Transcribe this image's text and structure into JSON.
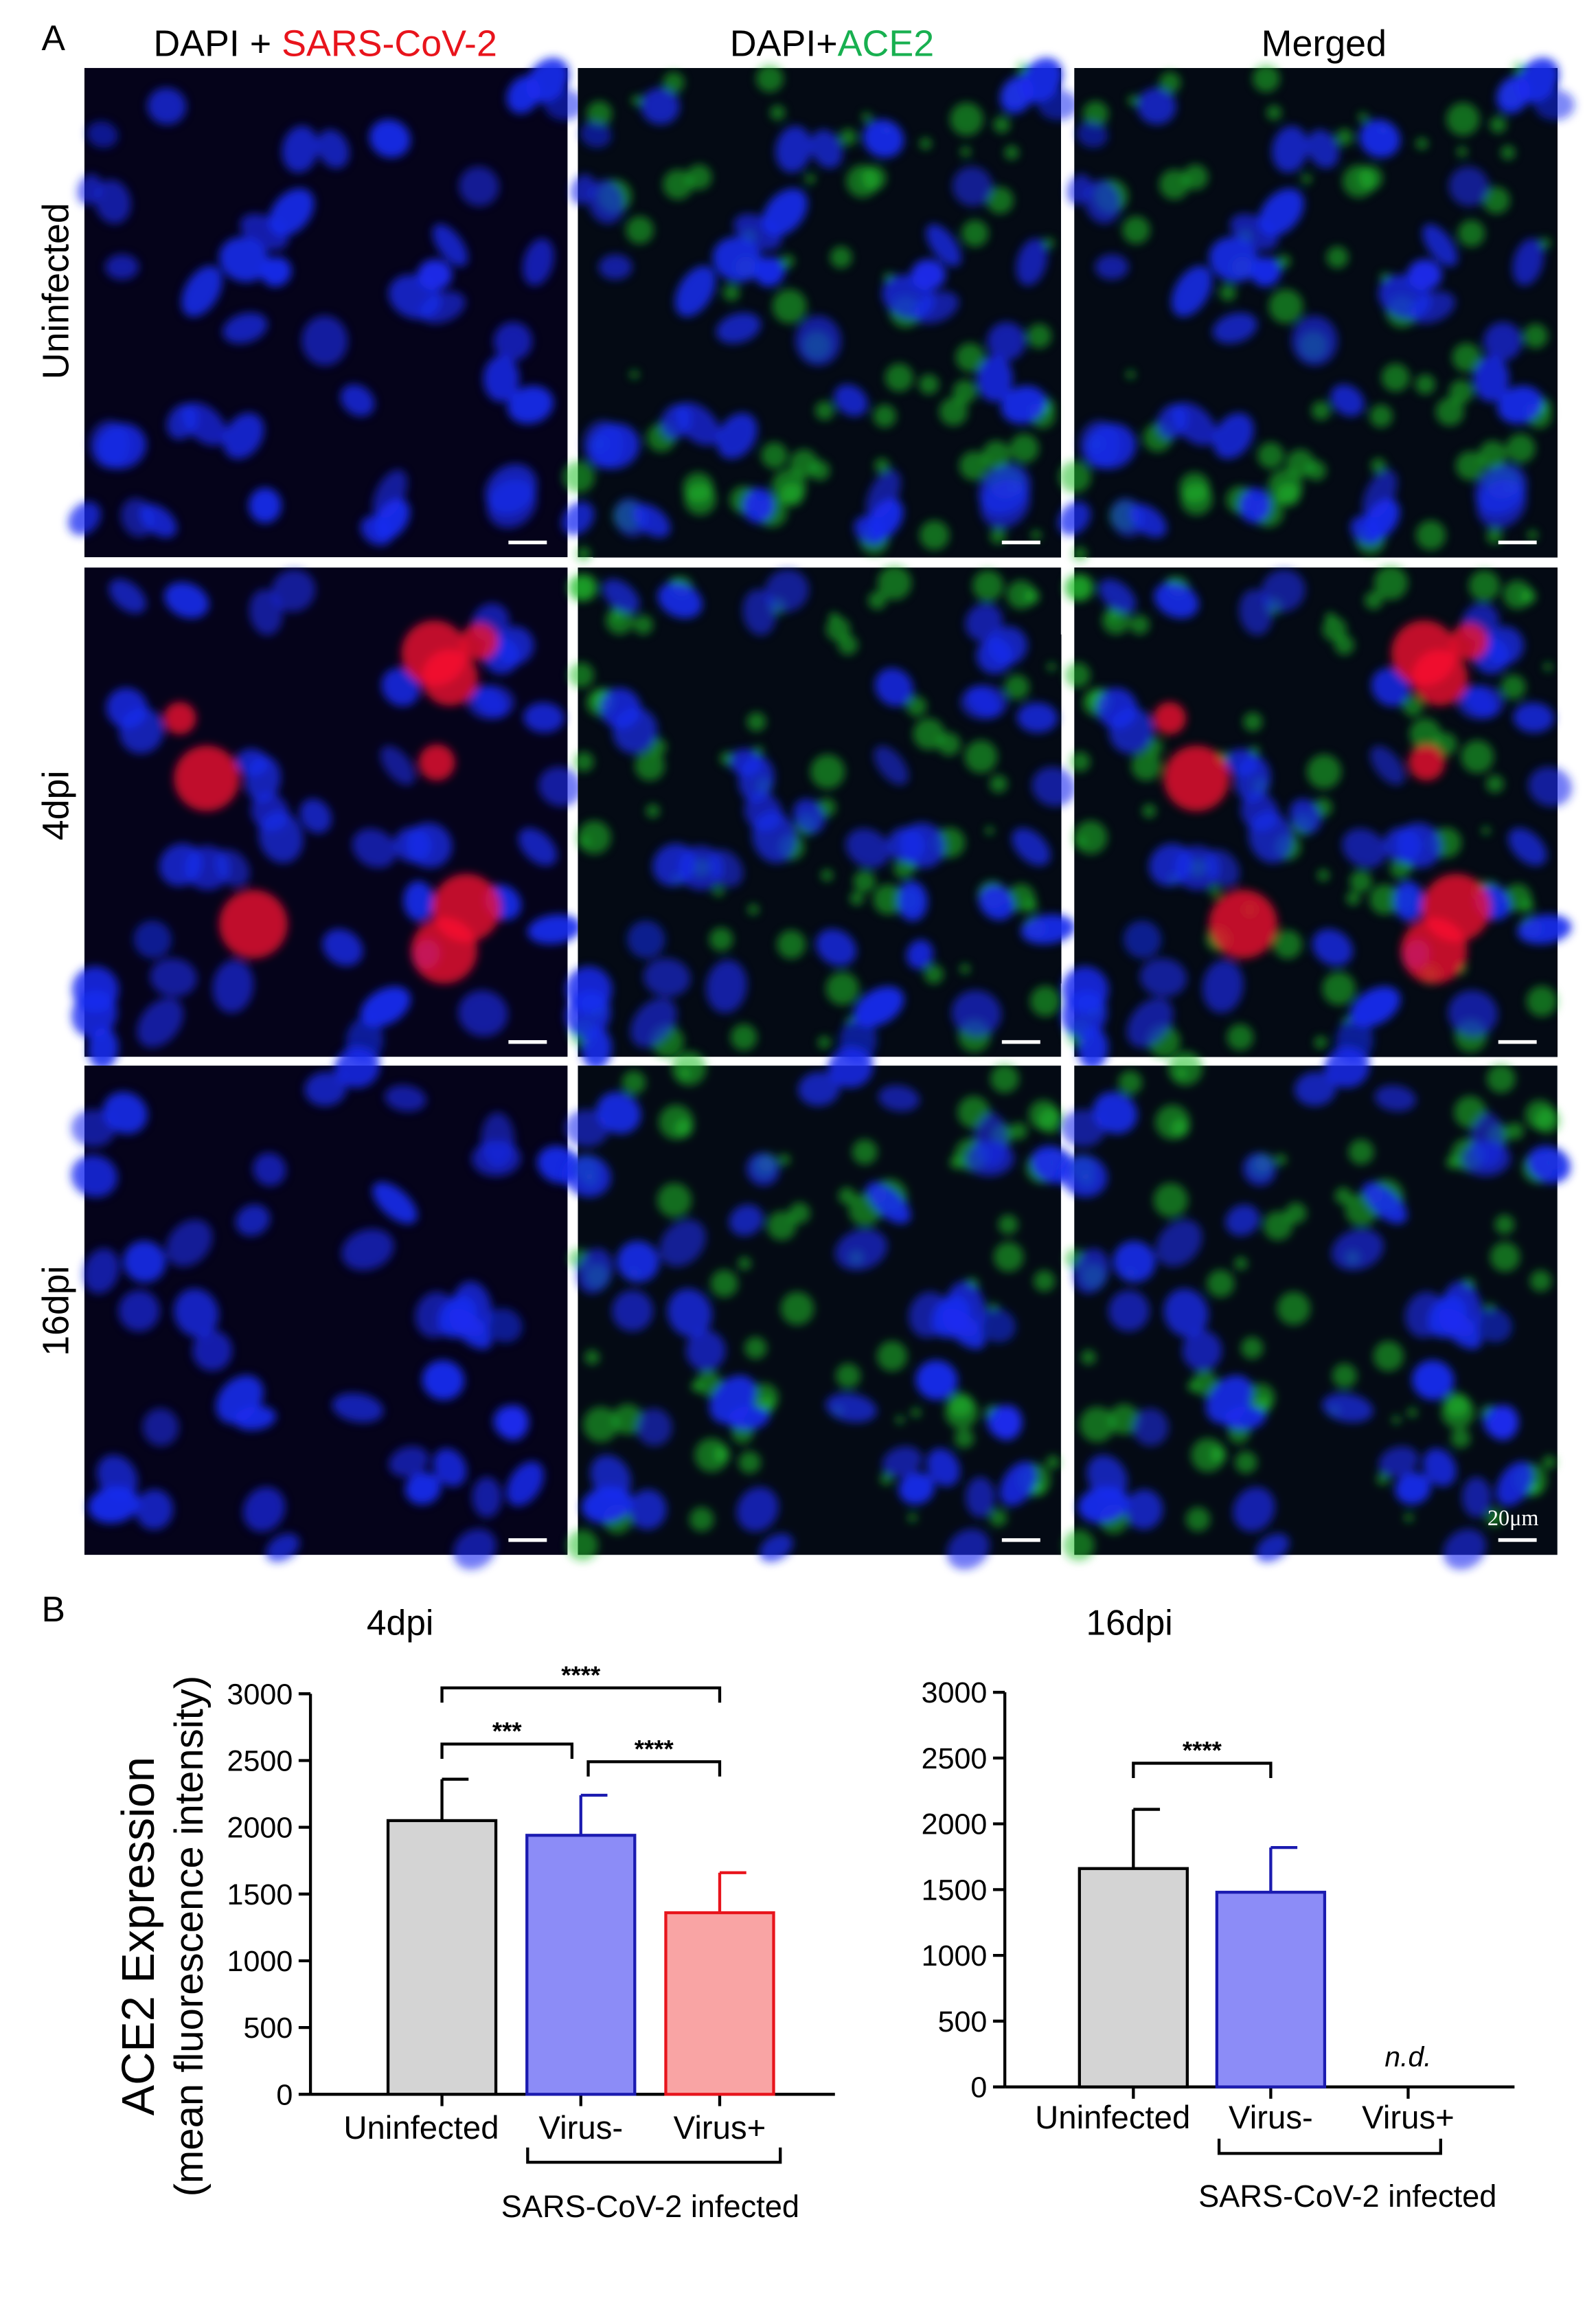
{
  "figure": {
    "panel_a_label": "A",
    "panel_b_label": "B",
    "column_headers": [
      {
        "parts": [
          "DAPI + ",
          "SARS-CoV-2"
        ]
      },
      {
        "parts": [
          "DAPI+",
          "ACE2"
        ]
      },
      {
        "parts": [
          "Merged"
        ]
      }
    ],
    "row_labels": [
      "Uninfected",
      "4dpi",
      "16dpi"
    ],
    "scale_bar_label": "20μm",
    "y_label": [
      "ACE2 Expression",
      "(mean fluorescence intensity)"
    ]
  },
  "chart_data": [
    {
      "type": "bar",
      "title": "4dpi",
      "categories": [
        "Uninfected",
        "Virus-",
        "Virus+"
      ],
      "values": [
        2050,
        1940,
        1360
      ],
      "errors": [
        310,
        300,
        300
      ],
      "colors": [
        "#d4d4d4",
        "#8c8cf7",
        "#f9a4a4"
      ],
      "edge_colors": [
        "#000000",
        "#1b1bb0",
        "#e8141c"
      ],
      "ylim": [
        0,
        3000
      ],
      "yticks": [
        0,
        500,
        1000,
        1500,
        2000,
        2500,
        3000
      ],
      "group_label": "SARS-CoV-2 infected",
      "significance": [
        {
          "label": "****",
          "pair": [
            0,
            2
          ]
        },
        {
          "label": "***",
          "pair": [
            0,
            1
          ]
        },
        {
          "label": "****",
          "pair": [
            1,
            2
          ]
        }
      ]
    },
    {
      "type": "bar",
      "title": "16dpi",
      "categories": [
        "Uninfected",
        "Virus-",
        "Virus+"
      ],
      "values": [
        1660,
        1480,
        null
      ],
      "value_labels": [
        null,
        null,
        "n.d."
      ],
      "errors": [
        450,
        340,
        null
      ],
      "colors": [
        "#d4d4d4",
        "#8c8cf7",
        "#f9a4a4"
      ],
      "edge_colors": [
        "#000000",
        "#1b1bb0",
        "#e8141c"
      ],
      "ylim": [
        0,
        3000
      ],
      "yticks": [
        0,
        500,
        1000,
        1500,
        2000,
        2500,
        3000
      ],
      "group_label": "SARS-CoV-2 infected",
      "significance": [
        {
          "label": "****",
          "pair": [
            0,
            1
          ]
        }
      ]
    }
  ]
}
